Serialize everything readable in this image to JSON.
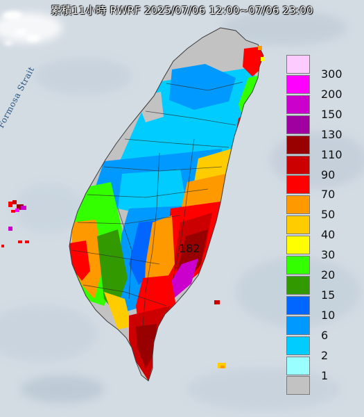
{
  "title": "累積11小時 RWRF 2025/07/06 12:00~07/06 23:00",
  "strait_label": "Formosa Strait",
  "max_value_label": "182",
  "legend": [
    {
      "label": "300",
      "color": "#fecbfe"
    },
    {
      "label": "200",
      "color": "#fe00fe"
    },
    {
      "label": "150",
      "color": "#cc00cc"
    },
    {
      "label": "130",
      "color": "#a000a0"
    },
    {
      "label": "110",
      "color": "#990000"
    },
    {
      "label": "90",
      "color": "#cc0000"
    },
    {
      "label": "70",
      "color": "#ff0000"
    },
    {
      "label": "50",
      "color": "#ff9900"
    },
    {
      "label": "40",
      "color": "#ffcc00"
    },
    {
      "label": "30",
      "color": "#ffff00"
    },
    {
      "label": "20",
      "color": "#33ff00"
    },
    {
      "label": "15",
      "color": "#339900"
    },
    {
      "label": "10",
      "color": "#0066ff"
    },
    {
      "label": "6",
      "color": "#0099ff"
    },
    {
      "label": "2",
      "color": "#00ccff"
    },
    {
      "label": "1",
      "color": "#99ffff"
    },
    {
      "label": "",
      "color": "#c2c2c2"
    }
  ],
  "colors": {
    "sea": "#d3dbe3",
    "cloud": "#eef2f6",
    "land_no_rain": "#c2c2c2"
  }
}
